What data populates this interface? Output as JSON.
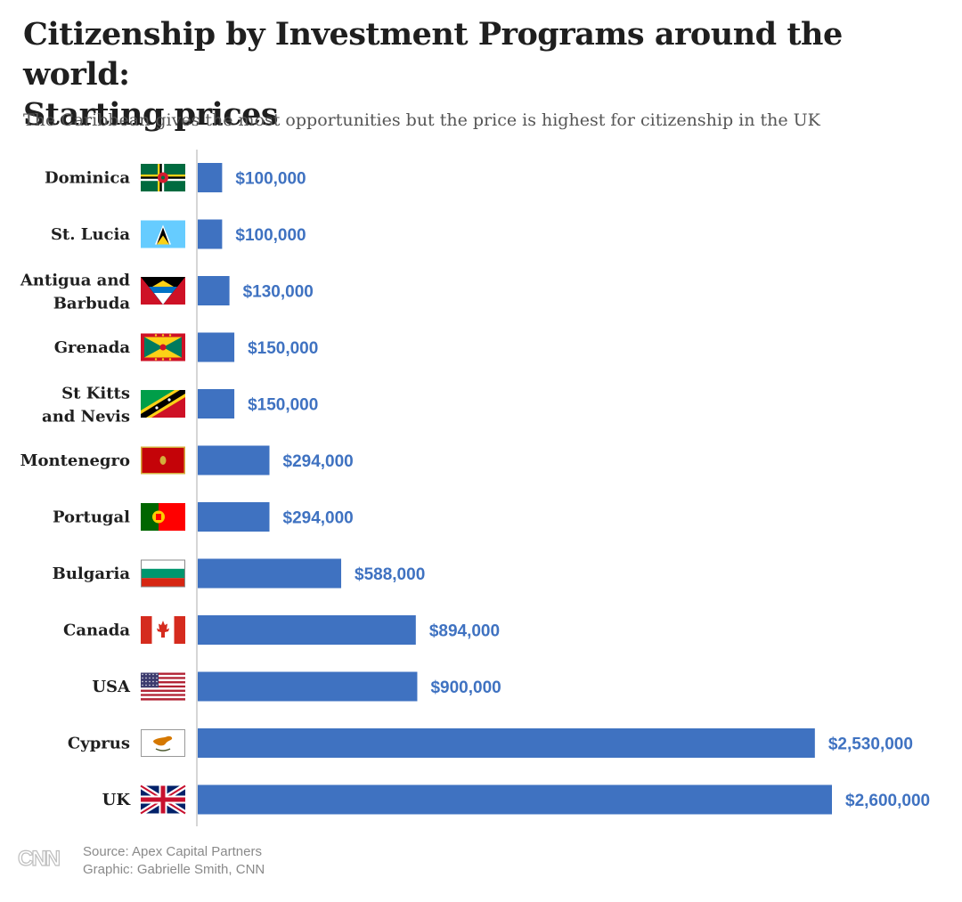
{
  "header": {
    "title_line1": "Citizenship by Investment Programs around the world:",
    "title_line2": "Starting prices",
    "subtitle": "The Caribbean gives the most opportunities but the price is highest for citizenship in the UK"
  },
  "chart_data": {
    "type": "bar",
    "orientation": "horizontal",
    "title": "Citizenship by Investment Programs around the world: Starting prices",
    "subtitle": "The Caribbean gives the most opportunities but the price is highest for citizenship in the UK",
    "xlabel": "",
    "ylabel": "",
    "grid": false,
    "legend": "none",
    "xlim": [
      0,
      2600000
    ],
    "bar_color": "#3f72c1",
    "value_label_color": "#3f72c1",
    "categories": [
      "Dominica",
      "St. Lucia",
      "Antigua and Barbuda",
      "Grenada",
      "St Kitts and Nevis",
      "Montenegro",
      "Portugal",
      "Bulgaria",
      "Canada",
      "USA",
      "Cyprus",
      "UK"
    ],
    "category_label_lines": [
      [
        "Dominica"
      ],
      [
        "St. Lucia"
      ],
      [
        "Antigua and",
        "Barbuda"
      ],
      [
        "Grenada"
      ],
      [
        "St Kitts",
        "and Nevis"
      ],
      [
        "Montenegro"
      ],
      [
        "Portugal"
      ],
      [
        "Bulgaria"
      ],
      [
        "Canada"
      ],
      [
        "USA"
      ],
      [
        "Cyprus"
      ],
      [
        "UK"
      ]
    ],
    "values": [
      100000,
      100000,
      130000,
      150000,
      150000,
      294000,
      294000,
      588000,
      894000,
      900000,
      2530000,
      2600000
    ],
    "value_labels": [
      "$100,000",
      "$100,000",
      "$130,000",
      "$150,000",
      "$150,000",
      "$294,000",
      "$294,000",
      "$588,000",
      "$894,000",
      "$900,000",
      "$2,530,000",
      "$2,600,000"
    ],
    "flags": [
      "dominica-flag-icon",
      "st-lucia-flag-icon",
      "antigua-and-barbuda-flag-icon",
      "grenada-flag-icon",
      "st-kitts-and-nevis-flag-icon",
      "montenegro-flag-icon",
      "portugal-flag-icon",
      "bulgaria-flag-icon",
      "canada-flag-icon",
      "usa-flag-icon",
      "cyprus-flag-icon",
      "uk-flag-icon"
    ]
  },
  "footer": {
    "logo": "CNN",
    "source": "Source: Apex Capital Partners",
    "credit": "Graphic: Gabrielle Smith, CNN"
  }
}
